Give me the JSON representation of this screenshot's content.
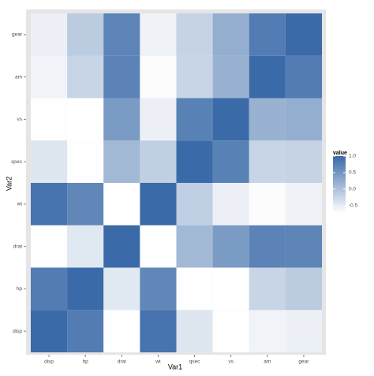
{
  "chart_data": {
    "type": "heatmap",
    "x_label": "Var1",
    "y_label": "Var2",
    "x": [
      "disp",
      "hp",
      "drat",
      "wt",
      "qsec",
      "vs",
      "am",
      "gear"
    ],
    "y": [
      "disp",
      "hp",
      "drat",
      "wt",
      "qsec",
      "vs",
      "am",
      "gear"
    ],
    "values": [
      [
        1,
        0.79,
        -0.71,
        0.89,
        -0.43,
        -0.71,
        -0.59,
        -0.56
      ],
      [
        0.79,
        1,
        -0.45,
        0.66,
        -0.71,
        -0.72,
        -0.24,
        -0.13
      ],
      [
        -0.71,
        -0.45,
        1,
        -0.71,
        0.09,
        0.44,
        0.71,
        0.7
      ],
      [
        0.89,
        0.66,
        -0.71,
        1,
        -0.17,
        -0.55,
        -0.69,
        -0.58
      ],
      [
        -0.43,
        -0.71,
        0.09,
        -0.17,
        1,
        0.74,
        -0.23,
        -0.21
      ],
      [
        -0.71,
        -0.72,
        0.44,
        -0.55,
        0.74,
        1,
        0.17,
        0.21
      ],
      [
        -0.59,
        -0.24,
        0.71,
        -0.69,
        -0.23,
        0.17,
        1,
        0.79
      ],
      [
        -0.56,
        -0.13,
        0.7,
        -0.58,
        -0.21,
        0.21,
        0.79,
        1
      ]
    ],
    "legend_title": "value",
    "clim": [
      -0.72,
      1
    ],
    "cticks": [
      {
        "value": 1,
        "label": "1.0"
      },
      0.5,
      {
        "value": 0,
        "label": "0.0"
      },
      -0.5
    ],
    "low_color": "#ffffff",
    "high_color": "#3a6aa8"
  }
}
